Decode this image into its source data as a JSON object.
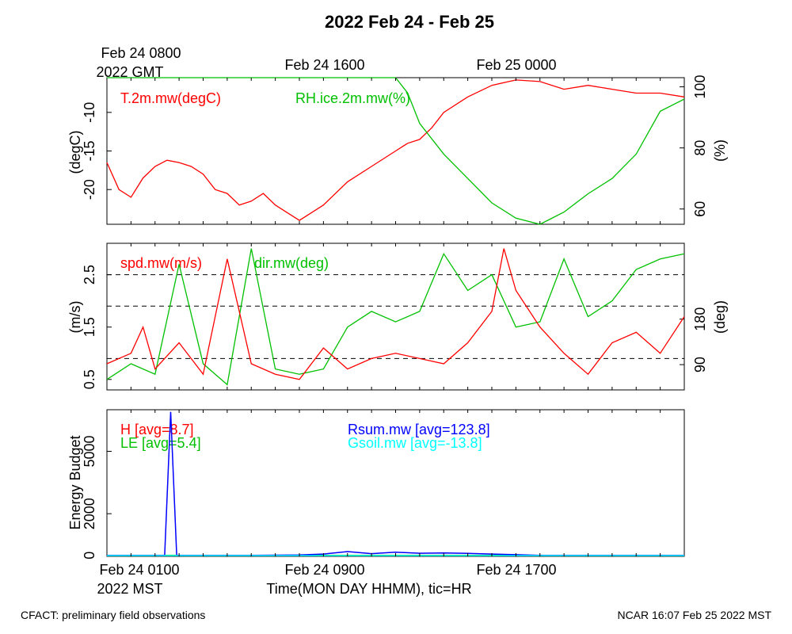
{
  "title": "2022 Feb 24 - Feb 25",
  "top_axis": {
    "ticks": [
      "Feb 24 0800",
      "Feb 24 1600",
      "Feb 25 0000"
    ],
    "sub": "2022 GMT"
  },
  "bottom_axis": {
    "ticks": [
      "Feb 24 0100",
      "Feb 24 0900",
      "Feb 24 1700"
    ],
    "sub": "2022 MST",
    "xlabel": "Time(MON DAY HHMM), tic=HR"
  },
  "footer": {
    "left": "CFACT: preliminary field observations",
    "right": "NCAR 16:07 Feb 25 2022 MST"
  },
  "colors": {
    "red": "#ff0000",
    "green": "#00c000",
    "blue": "#0000ff",
    "cyan": "#00ffff"
  },
  "chart_data": [
    {
      "type": "line",
      "x_unit": "hours since Feb 24 0000 MST",
      "xlim": [
        0,
        24
      ],
      "ylabel_left": "(degC)",
      "ylabel_right": "(%)",
      "ylim_left": [
        -24.5,
        -5.5
      ],
      "ylim_right": [
        55,
        103
      ],
      "yticks_left": [
        -10,
        -15,
        -20
      ],
      "yticks_right": [
        60,
        80,
        100
      ],
      "series": [
        {
          "name": "T.2m.mw(degC)",
          "color": "red",
          "axis": "left",
          "x": [
            0,
            0.5,
            1,
            1.5,
            2,
            2.5,
            3,
            3.5,
            4,
            4.5,
            5,
            5.5,
            6,
            6.5,
            7,
            7.5,
            8,
            8.5,
            9,
            10,
            11,
            12,
            12.5,
            13,
            13.5,
            14,
            15,
            16,
            17,
            18,
            19,
            20,
            21,
            22,
            23,
            24
          ],
          "y": [
            -16.5,
            -20,
            -21,
            -18.5,
            -17,
            -16.2,
            -16.5,
            -17,
            -18,
            -20,
            -20.5,
            -22,
            -21.5,
            -20.5,
            -22,
            -23,
            -24,
            -23,
            -22,
            -19,
            -17,
            -15,
            -14,
            -13.5,
            -12,
            -10,
            -8,
            -6.5,
            -5.8,
            -6,
            -7,
            -6.5,
            -7,
            -7.5,
            -7.5,
            -8
          ]
        },
        {
          "name": "RH.ice.2m.mw(%)",
          "color": "green",
          "axis": "right",
          "x": [
            0,
            3,
            6,
            9,
            12,
            12.5,
            13,
            14,
            15,
            16,
            17,
            18,
            19,
            20,
            21,
            22,
            23,
            24
          ],
          "y": [
            103,
            103,
            103,
            103,
            103,
            98,
            88,
            78,
            70,
            62,
            57,
            55,
            59,
            65,
            70,
            78,
            92,
            96
          ]
        }
      ]
    },
    {
      "type": "line",
      "x_unit": "hours since Feb 24 0000 MST",
      "xlim": [
        0,
        24
      ],
      "ylabel_left": "(m/s)",
      "ylabel_right": "(deg)",
      "ylim_left": [
        0.3,
        3.1
      ],
      "ylim_right": [
        40,
        330
      ],
      "yticks_left": [
        0.5,
        1.5,
        2.5
      ],
      "yticks_right": [
        90,
        180
      ],
      "series": [
        {
          "name": "spd.mw(m/s)",
          "color": "red",
          "axis": "left",
          "x": [
            0,
            1,
            1.5,
            2,
            3,
            4,
            5,
            6,
            7,
            8,
            9,
            10,
            11,
            12,
            13,
            14,
            15,
            16,
            16.5,
            17,
            18,
            19,
            20,
            21,
            22,
            23,
            24
          ],
          "y": [
            0.8,
            1,
            1.5,
            0.7,
            1.2,
            0.6,
            2.8,
            0.8,
            0.6,
            0.5,
            1.1,
            0.7,
            0.9,
            1.0,
            0.9,
            0.8,
            1.2,
            1.8,
            3.0,
            2.2,
            1.5,
            1.0,
            0.6,
            1.2,
            1.4,
            1.0,
            1.7
          ]
        },
        {
          "name": "dir.mw(deg)",
          "color": "green",
          "axis": "left",
          "x": [
            0,
            1,
            2,
            3,
            4,
            5,
            6,
            7,
            8,
            9,
            10,
            11,
            12,
            13,
            14,
            15,
            16,
            17,
            18,
            19,
            20,
            21,
            22,
            23,
            24
          ],
          "y": [
            0.5,
            0.8,
            0.6,
            2.7,
            0.8,
            0.4,
            3.0,
            0.7,
            0.6,
            0.7,
            1.5,
            1.8,
            1.6,
            1.8,
            2.9,
            2.2,
            2.5,
            1.5,
            1.6,
            2.8,
            1.7,
            2.0,
            2.6,
            2.8,
            2.9
          ]
        }
      ],
      "dashed_lines": [
        0.9,
        1.9,
        2.5
      ]
    },
    {
      "type": "line",
      "x_unit": "hours since Feb 24 0000 MST",
      "xlim": [
        0,
        24
      ],
      "ylabel_left": "Energy Budget",
      "ylim": [
        -50,
        7000
      ],
      "yticks": [
        0,
        2000,
        5000
      ],
      "series": [
        {
          "name": "H",
          "legend": "H [avg=8.7]",
          "color": "red",
          "x": [
            0,
            24
          ],
          "y": [
            0,
            0
          ]
        },
        {
          "name": "LE",
          "legend": "LE [avg=5.4]",
          "color": "green",
          "x": [
            0,
            24
          ],
          "y": [
            0,
            0
          ]
        },
        {
          "name": "Rsum.mw",
          "legend": "Rsum.mw [avg=123.8]",
          "color": "blue",
          "x": [
            0,
            2.3,
            2.4,
            2.65,
            2.9,
            3.0,
            6,
            8,
            9,
            10,
            11,
            12,
            13,
            14,
            15,
            16,
            17,
            18,
            24
          ],
          "y": [
            0,
            0,
            0,
            6900,
            0,
            0,
            0,
            20,
            60,
            180,
            80,
            150,
            100,
            110,
            90,
            60,
            30,
            0,
            0
          ]
        },
        {
          "name": "Gsoil.mw",
          "legend": "Gsoil.mw [avg=-13.8]",
          "color": "cyan",
          "x": [
            0,
            24
          ],
          "y": [
            -14,
            -14
          ]
        }
      ]
    }
  ]
}
